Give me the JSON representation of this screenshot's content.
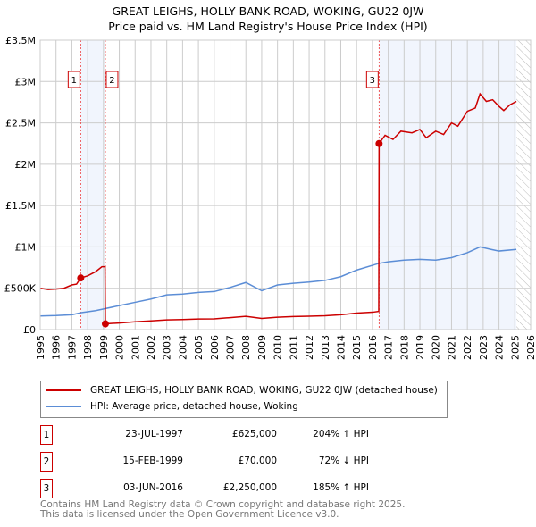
{
  "chart_data": {
    "type": "line",
    "title": "GREAT LEIGHS, HOLLY BANK ROAD, WOKING, GU22 0JW",
    "subtitle": "Price paid vs. HM Land Registry's House Price Index (HPI)",
    "xlim": [
      1995,
      2026
    ],
    "ylim": [
      0,
      3500000
    ],
    "x_ticks": [
      "1995",
      "1996",
      "1997",
      "1998",
      "1999",
      "2000",
      "2001",
      "2002",
      "2003",
      "2004",
      "2005",
      "2006",
      "2007",
      "2008",
      "2009",
      "2010",
      "2011",
      "2012",
      "2013",
      "2014",
      "2015",
      "2016",
      "2017",
      "2018",
      "2019",
      "2020",
      "2021",
      "2022",
      "2023",
      "2024",
      "2025",
      "2026"
    ],
    "y_ticks": [
      {
        "v": 0,
        "label": "£0"
      },
      {
        "v": 500000,
        "label": "£500K"
      },
      {
        "v": 1000000,
        "label": "£1M"
      },
      {
        "v": 1500000,
        "label": "£1.5M"
      },
      {
        "v": 2000000,
        "label": "£2M"
      },
      {
        "v": 2500000,
        "label": "£2.5M"
      },
      {
        "v": 3000000,
        "label": "£3M"
      },
      {
        "v": 3500000,
        "label": "£3.5M"
      }
    ],
    "grid": true,
    "shaded": [
      [
        1997.56,
        1999.12
      ],
      [
        2016.42,
        2025.1
      ]
    ],
    "hatched_from": 2025.1,
    "series": [
      {
        "name": "GREAT LEIGHS, HOLLY BANK ROAD, WOKING, GU22 0JW (detached house)",
        "color": "#cc0000",
        "points": [
          [
            1995,
            500000
          ],
          [
            1995.5,
            485000
          ],
          [
            1996,
            490000
          ],
          [
            1996.5,
            500000
          ],
          [
            1997,
            540000
          ],
          [
            1997.3,
            550000
          ],
          [
            1997.56,
            625000
          ],
          [
            1998,
            650000
          ],
          [
            1998.5,
            700000
          ],
          [
            1998.9,
            760000
          ],
          [
            1999.1,
            760000
          ],
          [
            1999.12,
            70000
          ],
          [
            2000,
            80000
          ],
          [
            2001,
            95000
          ],
          [
            2002,
            105000
          ],
          [
            2003,
            118000
          ],
          [
            2004,
            122000
          ],
          [
            2005,
            128000
          ],
          [
            2006,
            130000
          ],
          [
            2007,
            145000
          ],
          [
            2008,
            160000
          ],
          [
            2009,
            135000
          ],
          [
            2010,
            150000
          ],
          [
            2011,
            158000
          ],
          [
            2012,
            162000
          ],
          [
            2013,
            168000
          ],
          [
            2014,
            180000
          ],
          [
            2015,
            200000
          ],
          [
            2016,
            210000
          ],
          [
            2016.4,
            220000
          ],
          [
            2016.42,
            2250000
          ],
          [
            2016.8,
            2350000
          ],
          [
            2017.3,
            2300000
          ],
          [
            2017.8,
            2400000
          ],
          [
            2018.5,
            2380000
          ],
          [
            2019,
            2420000
          ],
          [
            2019.4,
            2320000
          ],
          [
            2020,
            2400000
          ],
          [
            2020.5,
            2360000
          ],
          [
            2021,
            2500000
          ],
          [
            2021.4,
            2460000
          ],
          [
            2022,
            2640000
          ],
          [
            2022.5,
            2680000
          ],
          [
            2022.8,
            2850000
          ],
          [
            2023.2,
            2760000
          ],
          [
            2023.6,
            2780000
          ],
          [
            2024,
            2700000
          ],
          [
            2024.3,
            2650000
          ],
          [
            2024.7,
            2720000
          ],
          [
            2025.1,
            2760000
          ]
        ]
      },
      {
        "name": "HPI: Average price, detached house, Woking",
        "color": "#5b8dd6",
        "points": [
          [
            1995,
            165000
          ],
          [
            1996,
            170000
          ],
          [
            1997,
            180000
          ],
          [
            1997.6,
            205000
          ],
          [
            1998.5,
            230000
          ],
          [
            1999,
            250000
          ],
          [
            2000,
            290000
          ],
          [
            2001,
            330000
          ],
          [
            2002,
            370000
          ],
          [
            2003,
            420000
          ],
          [
            2004,
            430000
          ],
          [
            2005,
            450000
          ],
          [
            2006,
            460000
          ],
          [
            2007,
            510000
          ],
          [
            2008,
            570000
          ],
          [
            2009,
            470000
          ],
          [
            2010,
            540000
          ],
          [
            2011,
            560000
          ],
          [
            2012,
            575000
          ],
          [
            2013,
            595000
          ],
          [
            2014,
            640000
          ],
          [
            2015,
            720000
          ],
          [
            2016.4,
            800000
          ],
          [
            2017,
            820000
          ],
          [
            2018,
            840000
          ],
          [
            2019,
            850000
          ],
          [
            2020,
            840000
          ],
          [
            2021,
            870000
          ],
          [
            2022,
            930000
          ],
          [
            2022.8,
            1000000
          ],
          [
            2023.5,
            970000
          ],
          [
            2024,
            950000
          ],
          [
            2025.1,
            970000
          ]
        ]
      }
    ],
    "sales": [
      {
        "id": "1",
        "x": 1997.56,
        "y": 625000
      },
      {
        "id": "2",
        "x": 1999.12,
        "y": 70000
      },
      {
        "id": "3",
        "x": 2016.42,
        "y": 2250000
      }
    ]
  },
  "legend": {
    "red": "GREAT LEIGHS, HOLLY BANK ROAD, WOKING, GU22 0JW (detached house)",
    "blue": "HPI: Average price, detached house, Woking"
  },
  "transactions": [
    {
      "n": "1",
      "date": "23-JUL-1997",
      "price": "£625,000",
      "hpi": "204% ↑ HPI"
    },
    {
      "n": "2",
      "date": "15-FEB-1999",
      "price": "£70,000",
      "hpi": "72% ↓ HPI"
    },
    {
      "n": "3",
      "date": "03-JUN-2016",
      "price": "£2,250,000",
      "hpi": "185% ↑ HPI"
    }
  ],
  "footer": {
    "line1": "Contains HM Land Registry data © Crown copyright and database right 2025.",
    "line2": "This data is licensed under the Open Government Licence v3.0."
  }
}
